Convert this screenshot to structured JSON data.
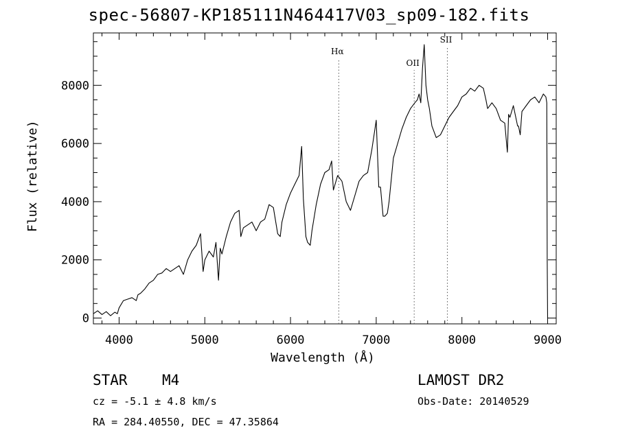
{
  "header": {
    "title": "spec-56807-KP185111N464417V03_sp09-182.fits"
  },
  "footer": {
    "object_class": "STAR",
    "subclass": "M4",
    "survey": "LAMOST DR2",
    "cz": "cz = -5.1 ± 4.8 km/s",
    "obs_date": "Obs-Date: 20140529",
    "radec": "RA = 284.40550, DEC =  47.35864"
  },
  "chart_data": {
    "type": "line",
    "title": "spec-56807-KP185111N464417V03_sp09-182.fits",
    "xlabel": "Wavelength (Å)",
    "ylabel": "Flux (relative)",
    "xlim": [
      3700,
      9100
    ],
    "ylim": [
      -200,
      9800
    ],
    "xticks": [
      4000,
      5000,
      6000,
      7000,
      8000,
      9000
    ],
    "yticks": [
      0,
      2000,
      4000,
      6000,
      8000
    ],
    "grid": false,
    "line_color": "#000000",
    "series": [
      {
        "x": [
          3700,
          3750,
          3800,
          3850,
          3900,
          3950,
          3980,
          4000,
          4050,
          4100,
          4150,
          4200,
          4220,
          4250,
          4300,
          4350,
          4400,
          4450,
          4500,
          4550,
          4600,
          4650,
          4700,
          4750,
          4800,
          4850,
          4900,
          4950,
          4980,
          5000,
          5050,
          5100,
          5130,
          5160,
          5180,
          5200,
          5250,
          5300,
          5350,
          5400,
          5420,
          5450,
          5500,
          5550,
          5600,
          5650,
          5700,
          5750,
          5800,
          5850,
          5880,
          5900,
          5950,
          6000,
          6050,
          6100,
          6130,
          6150,
          6180,
          6200,
          6230,
          6250,
          6300,
          6350,
          6400,
          6450,
          6480,
          6500,
          6550,
          6600,
          6650,
          6700,
          6750,
          6800,
          6850,
          6900,
          6950,
          6980,
          7000,
          7030,
          7050,
          7080,
          7100,
          7130,
          7150,
          7200,
          7250,
          7300,
          7350,
          7400,
          7450,
          7480,
          7500,
          7520,
          7540,
          7560,
          7580,
          7600,
          7620,
          7650,
          7700,
          7750,
          7800,
          7850,
          7900,
          7950,
          8000,
          8050,
          8100,
          8150,
          8200,
          8250,
          8280,
          8300,
          8350,
          8400,
          8450,
          8500,
          8530,
          8545,
          8560,
          8600,
          8650,
          8660,
          8680,
          8700,
          8750,
          8800,
          8850,
          8900,
          8950,
          8980,
          8990,
          8995,
          9000
        ],
        "values": [
          150,
          250,
          120,
          220,
          80,
          200,
          150,
          350,
          600,
          650,
          700,
          600,
          800,
          850,
          1000,
          1200,
          1300,
          1500,
          1550,
          1700,
          1600,
          1700,
          1800,
          1500,
          2000,
          2300,
          2500,
          2900,
          1600,
          2000,
          2300,
          2100,
          2600,
          1300,
          2400,
          2200,
          2800,
          3300,
          3600,
          3700,
          2800,
          3100,
          3200,
          3300,
          3000,
          3300,
          3400,
          3900,
          3800,
          2900,
          2800,
          3300,
          3900,
          4300,
          4600,
          4900,
          5900,
          4100,
          2800,
          2600,
          2500,
          3000,
          3900,
          4600,
          5000,
          5100,
          5400,
          4400,
          4900,
          4700,
          4000,
          3700,
          4200,
          4700,
          4900,
          5000,
          5800,
          6400,
          6800,
          4500,
          4500,
          3500,
          3500,
          3600,
          4000,
          5500,
          6000,
          6500,
          6900,
          7200,
          7400,
          7500,
          7700,
          7400,
          8600,
          9400,
          8000,
          7500,
          7200,
          6600,
          6200,
          6300,
          6600,
          6900,
          7100,
          7300,
          7600,
          7700,
          7900,
          7800,
          8000,
          7900,
          7500,
          7200,
          7400,
          7200,
          6800,
          6700,
          5700,
          7000,
          6900,
          7300,
          6600,
          6600,
          6300,
          7100,
          7300,
          7500,
          7600,
          7400,
          7700,
          7600,
          7400,
          2000,
          0
        ]
      }
    ],
    "annotations": [
      {
        "label": "Hα",
        "x": 6563
      },
      {
        "label": "OII",
        "x": 7443
      },
      {
        "label": "SII",
        "x": 7830
      }
    ]
  }
}
